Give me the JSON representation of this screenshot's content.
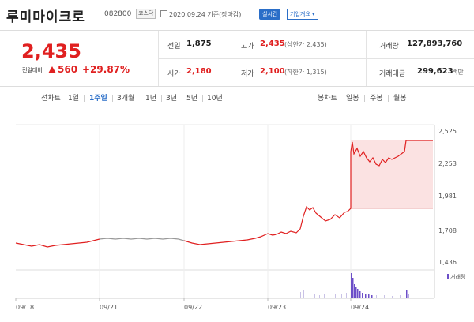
{
  "header": {
    "name": "루미마이크로",
    "code": "082800",
    "market": "코스닥",
    "date_info": "2020.09.24 기준(장마감)",
    "live_label": "실시간",
    "corp_label": "기업개요 ▾"
  },
  "quote": {
    "price": "2,435",
    "change_label": "전일대비",
    "change_amount": "560",
    "change_percent": "+29.87%",
    "prev_close_label": "전일",
    "prev_close": "1,875",
    "high_label": "고가",
    "high": "2,435",
    "upper_limit": "(상한가 2,435)",
    "volume_label": "거래량",
    "volume": "127,893,760",
    "open_label": "시가",
    "open": "2,180",
    "low_label": "저가",
    "low": "2,100",
    "lower_limit": "(하한가 1,315)",
    "amount_label": "거래대금",
    "amount": "299,623",
    "amount_unit": "백만"
  },
  "tabs": {
    "line_chart": "선차트",
    "d1": "1일",
    "w1": "1주일",
    "m3": "3개월",
    "y1": "1년",
    "y3": "3년",
    "y5": "5년",
    "y10": "10년",
    "candle_chart": "봉차트",
    "daily": "일봉",
    "weekly": "주봉",
    "monthly": "월봉"
  },
  "chart_data": {
    "type": "line",
    "y_ticks": [
      "2,525",
      "2,253",
      "1,981",
      "1,708",
      "1,436"
    ],
    "x_ticks": [
      "09/18",
      "09/21",
      "09/22",
      "09/23",
      "09/24"
    ],
    "volume_legend": "거래량",
    "ylim": [
      1436,
      2525
    ],
    "colors": {
      "up": "#e02020",
      "flat": "#999999",
      "fill": "#fbe2e2",
      "volume": "#6c4fc8"
    }
  }
}
